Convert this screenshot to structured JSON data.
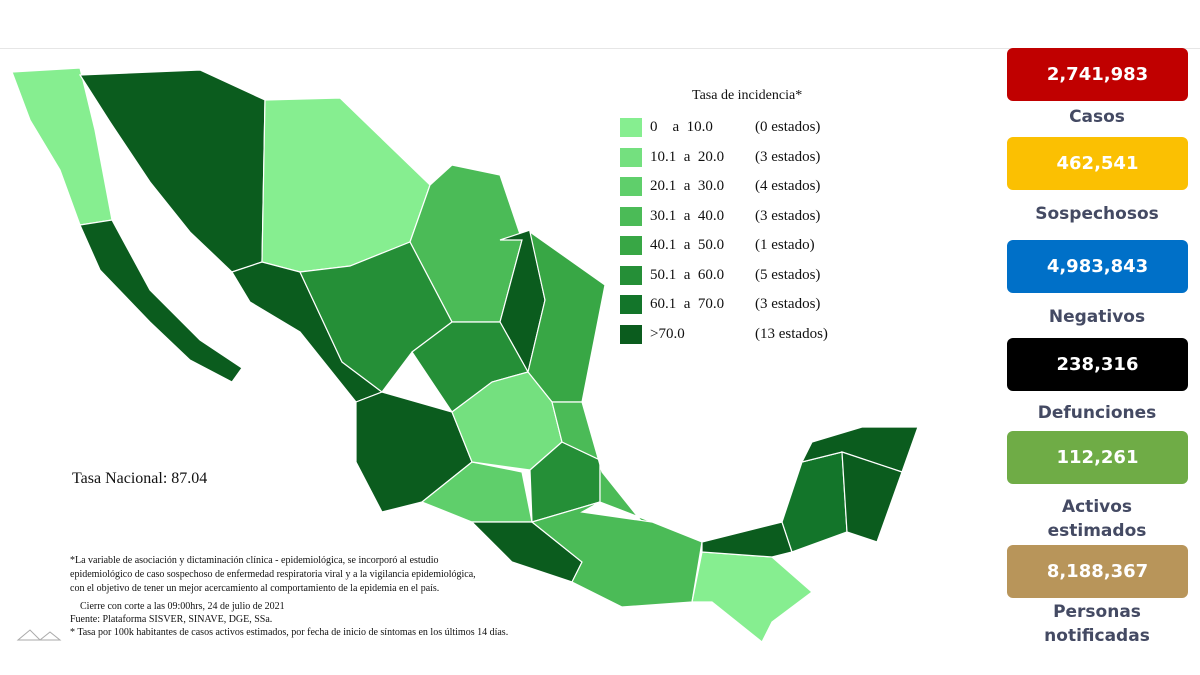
{
  "legend": {
    "title": "Tasa de incidencia*",
    "items": [
      {
        "range": "0    a  10.0",
        "count": "(0 estados)",
        "color": "#86ee90"
      },
      {
        "range": "10.1  a  20.0",
        "count": "(3 estados)",
        "color": "#74e07f"
      },
      {
        "range": "20.1  a  30.0",
        "count": "(4 estados)",
        "color": "#5fcf6b"
      },
      {
        "range": "30.1  a  40.0",
        "count": "(3 estados)",
        "color": "#4bbb57"
      },
      {
        "range": "40.1  a  50.0",
        "count": "(1 estado)",
        "color": "#38a745"
      },
      {
        "range": "50.1  a  60.0",
        "count": "(5 estados)",
        "color": "#258f37"
      },
      {
        "range": "60.1  a  70.0",
        "count": "(3 estados)",
        "color": "#13752a"
      },
      {
        "range": ">70.0",
        "count": "(13 estados)",
        "color": "#0b5c1e"
      }
    ]
  },
  "national_rate": "Tasa Nacional: 87.04",
  "footnotes": [
    "*La variable de asociación y dictaminación clínica - epidemiológica, se incorporó al estudio",
    "epidemiológico de caso sospechoso de enfermedad respiratoria viral y a la vigilancia epidemiológica,",
    "con el objetivo de tener un mejor acercamiento al comportamiento de la epidemia en el país.",
    "Cierre con corte a las 09:00hrs, 24 de julio de 2021",
    "Fuente: Plataforma SISVER, SINAVE, DGE, SSa.",
    "* Tasa por 100k habitantes de casos activos estimados, por fecha de inicio de síntomas en los últimos 14 días."
  ],
  "stats": [
    {
      "value": "2,741,983",
      "label": "Casos",
      "color": "#c00000"
    },
    {
      "value": "462,541",
      "label": "Sospechosos",
      "color": "#fbc002"
    },
    {
      "value": "4,983,843",
      "label": "Negativos",
      "color": "#0070c8"
    },
    {
      "value": "238,316",
      "label": "Defunciones",
      "color": "#000000"
    },
    {
      "value": "112,261",
      "label": "Activos estimados",
      "color": "#6fac46"
    },
    {
      "value": "8,188,367",
      "label": "Personas notificadas",
      "color": "#b8955a"
    }
  ]
}
